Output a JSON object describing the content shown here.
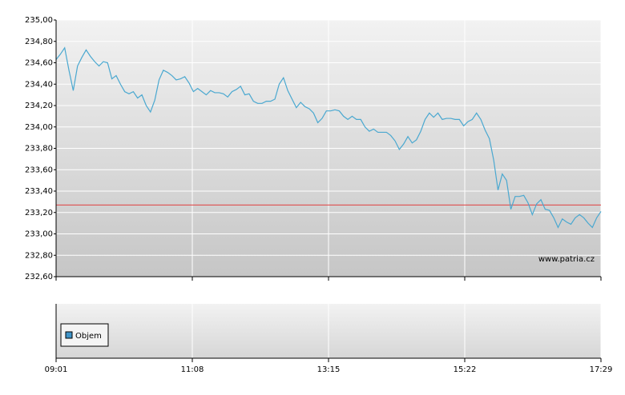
{
  "chart_data": {
    "type": "line",
    "x": [
      "09:01",
      "09:05",
      "09:09",
      "09:13",
      "09:17",
      "09:21",
      "09:25",
      "09:29",
      "09:33",
      "09:37",
      "09:41",
      "09:45",
      "09:49",
      "09:53",
      "09:57",
      "10:01",
      "10:05",
      "10:09",
      "10:13",
      "10:17",
      "10:21",
      "10:25",
      "10:29",
      "10:33",
      "10:37",
      "10:41",
      "10:45",
      "10:49",
      "10:53",
      "10:57",
      "11:01",
      "11:05",
      "11:09",
      "11:13",
      "11:17",
      "11:21",
      "11:25",
      "11:29",
      "11:33",
      "11:37",
      "11:41",
      "11:45",
      "11:49",
      "11:53",
      "11:57",
      "12:01",
      "12:05",
      "12:09",
      "12:13",
      "12:17",
      "12:21",
      "12:25",
      "12:29",
      "12:33",
      "12:37",
      "12:41",
      "12:45",
      "12:49",
      "12:53",
      "12:57",
      "13:01",
      "13:05",
      "13:09",
      "13:13",
      "13:17",
      "13:21",
      "13:25",
      "13:29",
      "13:33",
      "13:37",
      "13:41",
      "13:45",
      "13:49",
      "13:53",
      "13:57",
      "14:01",
      "14:05",
      "14:09",
      "14:13",
      "14:17",
      "14:21",
      "14:25",
      "14:29",
      "14:33",
      "14:37",
      "14:41",
      "14:45",
      "14:49",
      "14:53",
      "14:57",
      "15:01",
      "15:05",
      "15:09",
      "15:13",
      "15:17",
      "15:21",
      "15:25",
      "15:29",
      "15:33",
      "15:37",
      "15:41",
      "15:45",
      "15:49",
      "15:53",
      "15:57",
      "16:01",
      "16:05",
      "16:09",
      "16:13",
      "16:17",
      "16:21",
      "16:25",
      "16:29",
      "16:33",
      "16:37",
      "16:41",
      "16:45",
      "16:49",
      "16:53",
      "16:57",
      "17:01",
      "17:05",
      "17:09",
      "17:13",
      "17:17",
      "17:21",
      "17:25",
      "17:29"
    ],
    "series": [
      {
        "color": "#4aa8d0",
        "values": [
          234.63,
          234.68,
          234.74,
          234.53,
          234.34,
          234.57,
          234.65,
          234.72,
          234.66,
          234.61,
          234.57,
          234.61,
          234.6,
          234.45,
          234.48,
          234.4,
          234.33,
          234.31,
          234.33,
          234.27,
          234.3,
          234.2,
          234.14,
          234.25,
          234.44,
          234.53,
          234.51,
          234.48,
          234.44,
          234.45,
          234.47,
          234.41,
          234.33,
          234.36,
          234.33,
          234.3,
          234.34,
          234.32,
          234.32,
          234.31,
          234.28,
          234.33,
          234.35,
          234.38,
          234.3,
          234.31,
          234.24,
          234.22,
          234.22,
          234.24,
          234.24,
          234.26,
          234.4,
          234.46,
          234.34,
          234.26,
          234.18,
          234.23,
          234.19,
          234.17,
          234.13,
          234.04,
          234.08,
          234.15,
          234.15,
          234.16,
          234.15,
          234.1,
          234.07,
          234.1,
          234.07,
          234.07,
          234.0,
          233.96,
          233.98,
          233.95,
          233.95,
          233.95,
          233.92,
          233.87,
          233.79,
          233.84,
          233.91,
          233.85,
          233.88,
          233.96,
          234.07,
          234.13,
          234.09,
          234.13,
          234.07,
          234.08,
          234.08,
          234.07,
          234.07,
          234.01,
          234.05,
          234.07,
          234.13,
          234.07,
          233.97,
          233.89,
          233.69,
          233.41,
          233.56,
          233.5,
          233.23,
          233.35,
          233.35,
          233.36,
          233.29,
          233.18,
          233.28,
          233.32,
          233.23,
          233.22,
          233.15,
          233.06,
          233.14,
          233.11,
          233.09,
          233.15,
          233.18,
          233.15,
          233.1,
          233.06,
          233.15,
          233.21
        ]
      }
    ],
    "xticks": [
      "09:01",
      "11:08",
      "13:15",
      "15:22",
      "17:29"
    ],
    "ylim": [
      232.6,
      235.0
    ],
    "yticks": [
      {
        "value": 232.6,
        "label": "232,60"
      },
      {
        "value": 232.8,
        "label": "232,80"
      },
      {
        "value": 233.0,
        "label": "233,00"
      },
      {
        "value": 233.2,
        "label": "233,20"
      },
      {
        "value": 233.4,
        "label": "233,40"
      },
      {
        "value": 233.6,
        "label": "233,60"
      },
      {
        "value": 233.8,
        "label": "233,80"
      },
      {
        "value": 234.0,
        "label": "234,00"
      },
      {
        "value": 234.2,
        "label": "234,20"
      },
      {
        "value": 234.4,
        "label": "234,40"
      },
      {
        "value": 234.6,
        "label": "234,60"
      },
      {
        "value": 234.8,
        "label": "234,80"
      },
      {
        "value": 235.0,
        "label": "235,00"
      }
    ],
    "grid": true,
    "reference_line": {
      "value": 233.27,
      "color": "#e04040"
    },
    "watermark": "www.patria.cz",
    "volume_legend": {
      "name": "Objem",
      "color": "#3f94c8"
    }
  }
}
